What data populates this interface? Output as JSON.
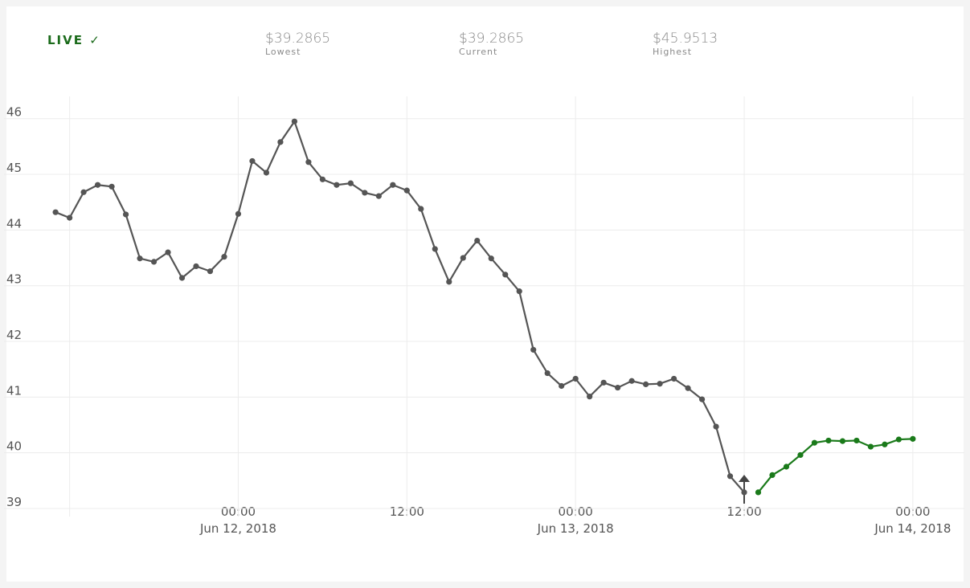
{
  "header": {
    "live": "LIVE ✓",
    "stats": [
      {
        "value": "$39.2865",
        "label": "Lowest"
      },
      {
        "value": "$39.2865",
        "label": "Current"
      },
      {
        "value": "$45.9513",
        "label": "Highest"
      }
    ]
  },
  "chart_data": {
    "type": "line",
    "xlim": [
      "2018-06-11T07:20",
      "2018-06-14T03:40"
    ],
    "xticks": [
      {
        "value": "2018-06-11T12:00",
        "label": null
      },
      {
        "value": "2018-06-12T00:00",
        "label": [
          "00:00",
          "Jun 12, 2018"
        ]
      },
      {
        "value": "2018-06-12T12:00",
        "label": "12:00"
      },
      {
        "value": "2018-06-13T00:00",
        "label": [
          "00:00",
          "Jun 13, 2018"
        ]
      },
      {
        "value": "2018-06-13T12:00",
        "label": "12:00"
      },
      {
        "value": "2018-06-14T00:00",
        "label": [
          "00:00",
          "Jun 14, 2018"
        ]
      }
    ],
    "ylim": [
      39,
      46.4
    ],
    "yticks": [
      39,
      40,
      41,
      42,
      43,
      44,
      45,
      46
    ],
    "grid": true,
    "series": [
      {
        "color": "#555555",
        "x": [
          "2018-06-11T11:00",
          "2018-06-11T12:00",
          "2018-06-11T13:00",
          "2018-06-11T14:00",
          "2018-06-11T15:00",
          "2018-06-11T16:00",
          "2018-06-11T17:00",
          "2018-06-11T18:00",
          "2018-06-11T19:00",
          "2018-06-11T20:00",
          "2018-06-11T21:00",
          "2018-06-11T22:00",
          "2018-06-11T23:00",
          "2018-06-12T00:00",
          "2018-06-12T01:00",
          "2018-06-12T02:00",
          "2018-06-12T03:00",
          "2018-06-12T04:00",
          "2018-06-12T05:00",
          "2018-06-12T06:00",
          "2018-06-12T07:00",
          "2018-06-12T08:00",
          "2018-06-12T09:00",
          "2018-06-12T10:00",
          "2018-06-12T11:00",
          "2018-06-12T12:00",
          "2018-06-12T13:00",
          "2018-06-12T14:00",
          "2018-06-12T15:00",
          "2018-06-12T16:00",
          "2018-06-12T17:00",
          "2018-06-12T18:00",
          "2018-06-12T19:00",
          "2018-06-12T20:00",
          "2018-06-12T21:00",
          "2018-06-12T22:00",
          "2018-06-12T23:00",
          "2018-06-13T00:00",
          "2018-06-13T01:00",
          "2018-06-13T02:00",
          "2018-06-13T03:00",
          "2018-06-13T04:00",
          "2018-06-13T05:00",
          "2018-06-13T06:00",
          "2018-06-13T07:00",
          "2018-06-13T08:00",
          "2018-06-13T09:00",
          "2018-06-13T10:00",
          "2018-06-13T11:00",
          "2018-06-13T12:00"
        ],
        "values": [
          44.32,
          44.22,
          44.68,
          44.81,
          44.78,
          44.28,
          43.49,
          43.43,
          43.6,
          43.14,
          43.35,
          43.26,
          43.52,
          44.29,
          45.24,
          45.03,
          45.58,
          45.95,
          45.22,
          44.91,
          44.81,
          44.84,
          44.67,
          44.61,
          44.81,
          44.71,
          44.38,
          43.66,
          43.07,
          43.5,
          43.81,
          43.49,
          43.2,
          42.9,
          41.85,
          41.43,
          41.2,
          41.33,
          41.01,
          41.26,
          41.17,
          41.29,
          41.23,
          41.24,
          41.33,
          41.16,
          40.96,
          40.47,
          39.58,
          39.29
        ]
      },
      {
        "color": "#1a7a1a",
        "x": [
          "2018-06-13T13:00",
          "2018-06-13T14:00",
          "2018-06-13T15:00",
          "2018-06-13T16:00",
          "2018-06-13T17:00",
          "2018-06-13T18:00",
          "2018-06-13T19:00",
          "2018-06-13T20:00",
          "2018-06-13T21:00",
          "2018-06-13T22:00",
          "2018-06-13T23:00",
          "2018-06-14T00:00"
        ],
        "values": [
          39.29,
          39.6,
          39.75,
          39.96,
          40.18,
          40.22,
          40.21,
          40.22,
          40.11,
          40.15,
          40.24,
          40.25
        ]
      }
    ]
  }
}
